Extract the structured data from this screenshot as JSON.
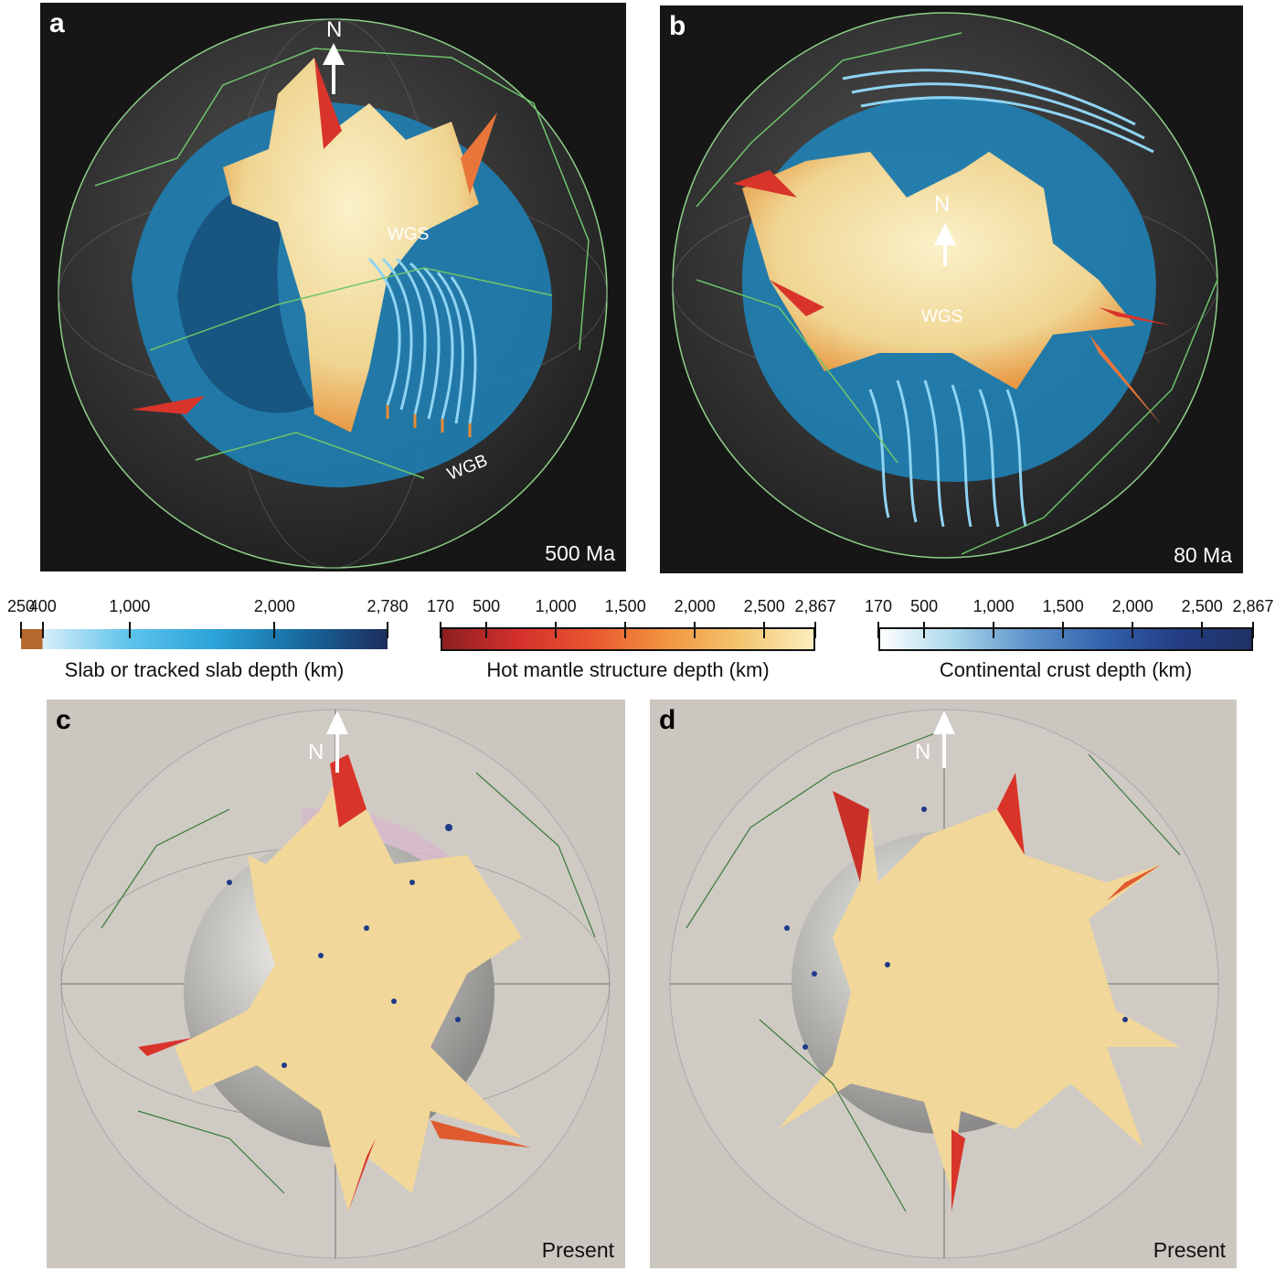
{
  "panels": {
    "a": {
      "letter": "a",
      "age": "500 Ma",
      "north": "N",
      "labels": [
        "WGS",
        "WGB"
      ]
    },
    "b": {
      "letter": "b",
      "age": "80 Ma",
      "north": "N",
      "labels": [
        "WGS"
      ]
    },
    "c": {
      "letter": "c",
      "age": "Present",
      "north": "N"
    },
    "d": {
      "letter": "d",
      "age": "Present",
      "north": "N"
    }
  },
  "colorbars": [
    {
      "title": "Slab or tracked slab depth (km)",
      "min": 250,
      "max": 2780,
      "ticks": [
        {
          "v": 250,
          "l": "250"
        },
        {
          "v": 400,
          "l": "400"
        },
        {
          "v": 1000,
          "l": "1,000"
        },
        {
          "v": 2000,
          "l": "2,000"
        },
        {
          "v": 2780,
          "l": "2,780"
        }
      ],
      "colors": [
        "#b5692e",
        "#b5692e",
        "#d8eef8",
        "#5ec3ec",
        "#2aa3d8",
        "#176a9e",
        "#1d2d5c"
      ],
      "split": 400
    },
    {
      "title": "Hot mantle structure depth (km)",
      "min": 170,
      "max": 2867,
      "ticks": [
        {
          "v": 170,
          "l": "170"
        },
        {
          "v": 500,
          "l": "500"
        },
        {
          "v": 1000,
          "l": "1,000"
        },
        {
          "v": 1500,
          "l": "1,500"
        },
        {
          "v": 2000,
          "l": "2,000"
        },
        {
          "v": 2500,
          "l": "2,500"
        },
        {
          "v": 2867,
          "l": "2,867"
        }
      ],
      "colors": [
        "#8c1f1f",
        "#d3302c",
        "#e9552f",
        "#f29440",
        "#f3c56d",
        "#fbeebf"
      ]
    },
    {
      "title": "Continental crust depth (km)",
      "min": 170,
      "max": 2867,
      "ticks": [
        {
          "v": 170,
          "l": "170"
        },
        {
          "v": 500,
          "l": "500"
        },
        {
          "v": 1000,
          "l": "1,000"
        },
        {
          "v": 1500,
          "l": "1,500"
        },
        {
          "v": 2000,
          "l": "2,000"
        },
        {
          "v": 2500,
          "l": "2,500"
        },
        {
          "v": 2867,
          "l": "2,867"
        }
      ],
      "colors": [
        "#ffffff",
        "#a9d6ea",
        "#5c92c9",
        "#3463ad",
        "#233d84",
        "#1f3263"
      ]
    }
  ],
  "colors": {
    "dark_bg": "#161616",
    "light_bg": "#cbc6bf",
    "plate_lines": "#6ec56a",
    "slab_blue": "#1f86bd",
    "hot_yellow": "#f1dc9c",
    "hot_red": "#d9342a"
  }
}
